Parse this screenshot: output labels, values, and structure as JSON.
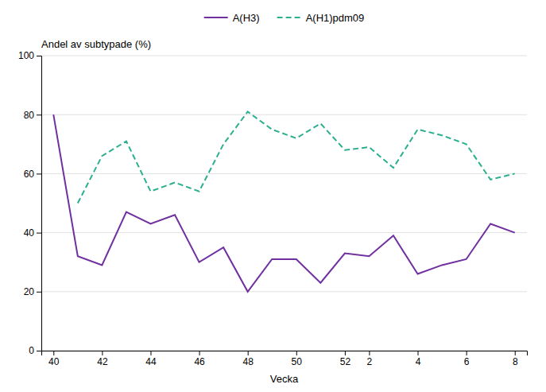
{
  "chart_data": {
    "type": "line",
    "xlabel": "Vecka",
    "ylabel": "Andel av subtypade (%)",
    "categories": [
      "40",
      null,
      "42",
      null,
      "44",
      null,
      "46",
      null,
      "48",
      null,
      "50",
      null,
      "52",
      "2",
      null,
      "4",
      null,
      "6",
      null,
      "8"
    ],
    "series": [
      {
        "name": "A(H3)",
        "color": "#7030a0",
        "line_style": "solid",
        "values": [
          80,
          32,
          29,
          47,
          43,
          46,
          30,
          35,
          20,
          31,
          31,
          23,
          33,
          32,
          39,
          26,
          29,
          31,
          43,
          40
        ]
      },
      {
        "name": "A(H1)pdm09",
        "color": "#2baf8e",
        "line_style": "dashed",
        "values": [
          null,
          50,
          66,
          71,
          54,
          57,
          54,
          70,
          81,
          75,
          72,
          77,
          68,
          69,
          62,
          75,
          73,
          70,
          58,
          60
        ]
      }
    ],
    "ylim": [
      0,
      100
    ],
    "yticks": [
      0,
      20,
      40,
      60,
      80,
      100
    ],
    "grid": true,
    "legend": "top"
  }
}
